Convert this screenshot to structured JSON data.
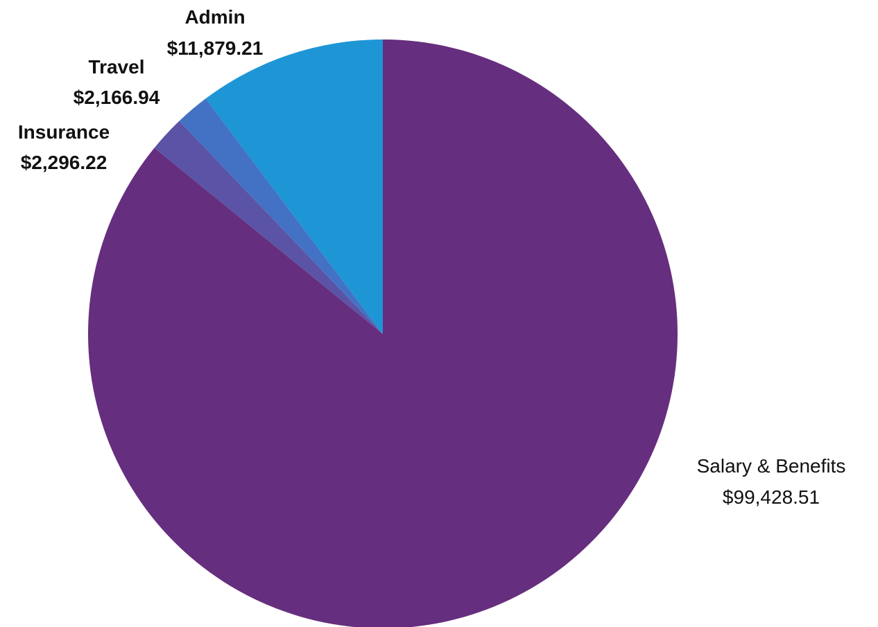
{
  "chart_data": {
    "type": "pie",
    "title": "",
    "start_angle_deg": 0,
    "direction": "clockwise",
    "legend": "none",
    "slices": [
      {
        "label": "Salary & Benefits",
        "value": 99428.51,
        "value_text": "$99,428.51",
        "color": "#662e7e",
        "label_style": "normal"
      },
      {
        "label": "Insurance",
        "value": 2296.22,
        "value_text": "$2,296.22",
        "color": "#5b53a6",
        "label_style": "bold"
      },
      {
        "label": "Travel",
        "value": 2166.94,
        "value_text": "$2,166.94",
        "color": "#4372c4",
        "label_style": "bold"
      },
      {
        "label": "Admin",
        "value": 11879.21,
        "value_text": "$11,879.21",
        "color": "#1e96d6",
        "label_style": "bold"
      }
    ]
  }
}
